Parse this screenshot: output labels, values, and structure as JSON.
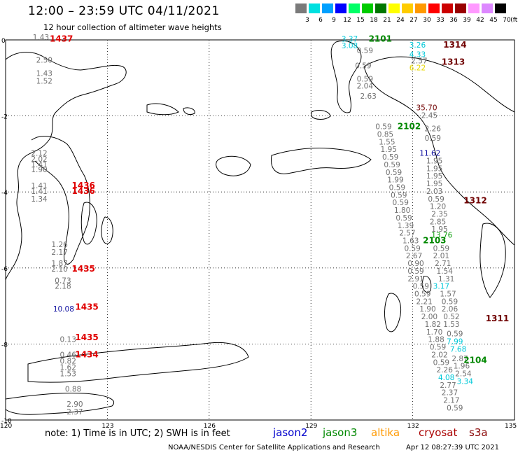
{
  "header": {
    "title": "12:00 – 23:59 UTC 04/11/2021",
    "subtitle": "12 hour collection of altimeter wave heights"
  },
  "legend": {
    "unit": "(ft)",
    "bins": [
      {
        "label": "3",
        "color": "#7a7a7a"
      },
      {
        "label": "6",
        "color": "#00e0e0"
      },
      {
        "label": "9",
        "color": "#00a0ff"
      },
      {
        "label": "12",
        "color": "#0000ff"
      },
      {
        "label": "15",
        "color": "#00ff66"
      },
      {
        "label": "18",
        "color": "#00cc00"
      },
      {
        "label": "21",
        "color": "#007700"
      },
      {
        "label": "24",
        "color": "#ffff00"
      },
      {
        "label": "27",
        "color": "#ffcc00"
      },
      {
        "label": "30",
        "color": "#ff9900"
      },
      {
        "label": "33",
        "color": "#ff0000"
      },
      {
        "label": "36",
        "color": "#cc0000"
      },
      {
        "label": "39",
        "color": "#990000"
      },
      {
        "label": "42",
        "color": "#ff99ff"
      },
      {
        "label": "45",
        "color": "#dd88ff"
      },
      {
        "label": "70",
        "color": "#000000"
      }
    ]
  },
  "axes": {
    "lat_labels": [
      "0",
      "-2",
      "-4",
      "-6",
      "-8",
      "-10"
    ],
    "lon_labels": [
      "120",
      "123",
      "126",
      "129",
      "132",
      "135"
    ]
  },
  "note": "note: 1) Time is in UTC; 2) SWH is in feet",
  "satellites": [
    {
      "name": "jason2",
      "color": "#0000cc"
    },
    {
      "name": "jason3",
      "color": "#008800"
    },
    {
      "name": "altika",
      "color": "#ff9900"
    },
    {
      "name": "cryosat",
      "color": "#aa0000"
    },
    {
      "name": "s3a",
      "color": "#880000"
    }
  ],
  "footer": {
    "credit": "NOAA/NESDIS Center for Satellite Applications and Research",
    "timestamp": "Apr 12 08:27:39 UTC 2021"
  },
  "colors": {
    "swh_gray": "#707070",
    "swh_cyan": "#00c8d8",
    "swh_blue": "#1010a0",
    "swh_yellow": "#e8d800",
    "swh_green": "#10a010",
    "time_red": "#e00000",
    "time_green": "#008800",
    "time_darkred": "#700000"
  },
  "chart_data": {
    "type": "scatter",
    "xlim": [
      120,
      135
    ],
    "ylim": [
      -10,
      0
    ],
    "grid": true,
    "pass_times": [
      {
        "text": "1437",
        "lon": 121.3,
        "lat": -0.05,
        "sat": "cryosat"
      },
      {
        "text": "1436",
        "lon": 121.95,
        "lat": -3.9,
        "sat": "cryosat"
      },
      {
        "text": "1436",
        "lon": 121.95,
        "lat": -4.05,
        "sat": "cryosat"
      },
      {
        "text": "1435",
        "lon": 121.95,
        "lat": -6.1,
        "sat": "cryosat"
      },
      {
        "text": "1435",
        "lon": 122.05,
        "lat": -7.1,
        "sat": "cryosat"
      },
      {
        "text": "1435",
        "lon": 122.05,
        "lat": -7.9,
        "sat": "cryosat"
      },
      {
        "text": "1434",
        "lon": 122.05,
        "lat": -8.35,
        "sat": "cryosat"
      },
      {
        "text": "2101",
        "lon": 130.7,
        "lat": -0.05,
        "sat": "jason3"
      },
      {
        "text": "1314",
        "lon": 132.9,
        "lat": -0.2,
        "sat": "s3a"
      },
      {
        "text": "1313",
        "lon": 132.85,
        "lat": -0.65,
        "sat": "s3a"
      },
      {
        "text": "2102",
        "lon": 131.55,
        "lat": -2.35,
        "sat": "jason3"
      },
      {
        "text": "1312",
        "lon": 133.5,
        "lat": -4.3,
        "sat": "s3a"
      },
      {
        "text": "2103",
        "lon": 132.3,
        "lat": -5.35,
        "sat": "jason3"
      },
      {
        "text": "1311",
        "lon": 134.15,
        "lat": -7.4,
        "sat": "s3a"
      },
      {
        "text": "2104",
        "lon": 133.5,
        "lat": -8.5,
        "sat": "jason3"
      }
    ],
    "swh_points": [
      {
        "text": "1.43",
        "lon": 120.8,
        "lat": 0.0,
        "c": "gray"
      },
      {
        "text": "2.50",
        "lon": 120.9,
        "lat": -0.6,
        "c": "gray"
      },
      {
        "text": "1.43",
        "lon": 120.9,
        "lat": -0.95,
        "c": "gray"
      },
      {
        "text": "1.52",
        "lon": 120.9,
        "lat": -1.15,
        "c": "gray"
      },
      {
        "text": "2.12",
        "lon": 120.75,
        "lat": -3.05,
        "c": "gray"
      },
      {
        "text": "2.02",
        "lon": 120.75,
        "lat": -3.2,
        "c": "gray"
      },
      {
        "text": "1.41",
        "lon": 120.75,
        "lat": -3.35,
        "c": "gray"
      },
      {
        "text": "1.90",
        "lon": 120.75,
        "lat": -3.48,
        "c": "gray"
      },
      {
        "text": "1.41",
        "lon": 120.75,
        "lat": -3.9,
        "c": "gray"
      },
      {
        "text": "1.41",
        "lon": 120.75,
        "lat": -4.05,
        "c": "gray"
      },
      {
        "text": "1.34",
        "lon": 120.75,
        "lat": -4.25,
        "c": "gray"
      },
      {
        "text": "1.26",
        "lon": 121.35,
        "lat": -5.45,
        "c": "gray"
      },
      {
        "text": "2.17",
        "lon": 121.35,
        "lat": -5.65,
        "c": "gray"
      },
      {
        "text": "1.87",
        "lon": 121.35,
        "lat": -5.95,
        "c": "gray"
      },
      {
        "text": "2.10",
        "lon": 121.35,
        "lat": -6.1,
        "c": "gray"
      },
      {
        "text": "0.73",
        "lon": 121.45,
        "lat": -6.4,
        "c": "gray"
      },
      {
        "text": "2.18",
        "lon": 121.45,
        "lat": -6.55,
        "c": "gray"
      },
      {
        "text": "10.08",
        "lon": 121.4,
        "lat": -7.15,
        "c": "blue"
      },
      {
        "text": "0.13",
        "lon": 121.6,
        "lat": -7.95,
        "c": "gray"
      },
      {
        "text": "0.46",
        "lon": 121.6,
        "lat": -8.35,
        "c": "gray"
      },
      {
        "text": "0.82",
        "lon": 121.6,
        "lat": -8.52,
        "c": "gray"
      },
      {
        "text": "1.62",
        "lon": 121.6,
        "lat": -8.68,
        "c": "gray"
      },
      {
        "text": "1.53",
        "lon": 121.6,
        "lat": -8.85,
        "c": "gray"
      },
      {
        "text": "0.88",
        "lon": 121.75,
        "lat": -9.25,
        "c": "gray"
      },
      {
        "text": "2.90",
        "lon": 121.8,
        "lat": -9.65,
        "c": "gray"
      },
      {
        "text": "2.37",
        "lon": 121.8,
        "lat": -9.85,
        "c": "gray"
      },
      {
        "text": "3.37",
        "lon": 129.9,
        "lat": -0.05,
        "c": "cyan"
      },
      {
        "text": "3.08",
        "lon": 129.9,
        "lat": -0.22,
        "c": "cyan"
      },
      {
        "text": "0.59",
        "lon": 130.35,
        "lat": -0.35,
        "c": "gray"
      },
      {
        "text": "0.59",
        "lon": 130.3,
        "lat": -0.75,
        "c": "gray"
      },
      {
        "text": "0.59",
        "lon": 130.35,
        "lat": -1.1,
        "c": "gray"
      },
      {
        "text": "2.04",
        "lon": 130.35,
        "lat": -1.28,
        "c": "gray"
      },
      {
        "text": "2.63",
        "lon": 130.45,
        "lat": -1.55,
        "c": "gray"
      },
      {
        "text": "3.26",
        "lon": 131.9,
        "lat": -0.2,
        "c": "cyan"
      },
      {
        "text": "4.33",
        "lon": 131.9,
        "lat": -0.45,
        "c": "cyan"
      },
      {
        "text": "2.57",
        "lon": 131.95,
        "lat": -0.62,
        "c": "gray"
      },
      {
        "text": "6.22",
        "lon": 131.9,
        "lat": -0.8,
        "c": "yellow"
      },
      {
        "text": "35.70",
        "lon": 132.1,
        "lat": -1.85,
        "c": "darkred"
      },
      {
        "text": "2.45",
        "lon": 132.25,
        "lat": -2.05,
        "c": "gray"
      },
      {
        "text": "2.26",
        "lon": 132.35,
        "lat": -2.4,
        "c": "gray"
      },
      {
        "text": "0.59",
        "lon": 132.35,
        "lat": -2.65,
        "c": "gray"
      },
      {
        "text": "11.62",
        "lon": 132.2,
        "lat": -3.05,
        "c": "blue"
      },
      {
        "text": "1.95",
        "lon": 132.4,
        "lat": -3.25,
        "c": "gray"
      },
      {
        "text": "1.95",
        "lon": 132.4,
        "lat": -3.45,
        "c": "gray"
      },
      {
        "text": "1.95",
        "lon": 132.4,
        "lat": -3.65,
        "c": "gray"
      },
      {
        "text": "1.95",
        "lon": 132.4,
        "lat": -3.85,
        "c": "gray"
      },
      {
        "text": "2.03",
        "lon": 132.4,
        "lat": -4.05,
        "c": "gray"
      },
      {
        "text": "0.59",
        "lon": 132.45,
        "lat": -4.25,
        "c": "gray"
      },
      {
        "text": "1.20",
        "lon": 132.5,
        "lat": -4.45,
        "c": "gray"
      },
      {
        "text": "2.35",
        "lon": 132.55,
        "lat": -4.65,
        "c": "gray"
      },
      {
        "text": "2.85",
        "lon": 132.5,
        "lat": -4.85,
        "c": "gray"
      },
      {
        "text": "1.95",
        "lon": 132.55,
        "lat": -5.05,
        "c": "gray"
      },
      {
        "text": "13.76",
        "lon": 132.55,
        "lat": -5.2,
        "c": "green"
      },
      {
        "text": "0.59",
        "lon": 132.6,
        "lat": -5.55,
        "c": "gray"
      },
      {
        "text": "2.01",
        "lon": 132.6,
        "lat": -5.75,
        "c": "gray"
      },
      {
        "text": "2.71",
        "lon": 132.65,
        "lat": -5.95,
        "c": "gray"
      },
      {
        "text": "1.54",
        "lon": 132.7,
        "lat": -6.15,
        "c": "gray"
      },
      {
        "text": "1.31",
        "lon": 132.75,
        "lat": -6.35,
        "c": "gray"
      },
      {
        "text": "3.17",
        "lon": 132.6,
        "lat": -6.55,
        "c": "cyan"
      },
      {
        "text": "1.57",
        "lon": 132.8,
        "lat": -6.75,
        "c": "gray"
      },
      {
        "text": "0.59",
        "lon": 132.85,
        "lat": -6.95,
        "c": "gray"
      },
      {
        "text": "2.06",
        "lon": 132.85,
        "lat": -7.15,
        "c": "gray"
      },
      {
        "text": "0.52",
        "lon": 132.9,
        "lat": -7.35,
        "c": "gray"
      },
      {
        "text": "1.53",
        "lon": 132.9,
        "lat": -7.55,
        "c": "gray"
      },
      {
        "text": "0.59",
        "lon": 133.0,
        "lat": -7.8,
        "c": "gray"
      },
      {
        "text": "7.99",
        "lon": 133.0,
        "lat": -8.0,
        "c": "cyan"
      },
      {
        "text": "7.68",
        "lon": 133.1,
        "lat": -8.2,
        "c": "cyan"
      },
      {
        "text": "2.87",
        "lon": 133.15,
        "lat": -8.45,
        "c": "gray"
      },
      {
        "text": "1.96",
        "lon": 133.2,
        "lat": -8.65,
        "c": "gray"
      },
      {
        "text": "2.54",
        "lon": 133.25,
        "lat": -8.85,
        "c": "gray"
      },
      {
        "text": "3.34",
        "lon": 133.3,
        "lat": -9.05,
        "c": "cyan"
      },
      {
        "text": "0.59",
        "lon": 130.9,
        "lat": -2.35,
        "c": "gray"
      },
      {
        "text": "0.85",
        "lon": 130.95,
        "lat": -2.55,
        "c": "gray"
      },
      {
        "text": "1.55",
        "lon": 131.0,
        "lat": -2.75,
        "c": "gray"
      },
      {
        "text": "1.95",
        "lon": 131.05,
        "lat": -2.95,
        "c": "gray"
      },
      {
        "text": "0.59",
        "lon": 131.1,
        "lat": -3.15,
        "c": "gray"
      },
      {
        "text": "0.59",
        "lon": 131.15,
        "lat": -3.35,
        "c": "gray"
      },
      {
        "text": "0.59",
        "lon": 131.2,
        "lat": -3.55,
        "c": "gray"
      },
      {
        "text": "1.99",
        "lon": 131.25,
        "lat": -3.75,
        "c": "gray"
      },
      {
        "text": "0.59",
        "lon": 131.3,
        "lat": -3.95,
        "c": "gray"
      },
      {
        "text": "0.59",
        "lon": 131.35,
        "lat": -4.15,
        "c": "gray"
      },
      {
        "text": "0.59",
        "lon": 131.4,
        "lat": -4.35,
        "c": "gray"
      },
      {
        "text": "1.80",
        "lon": 131.45,
        "lat": -4.55,
        "c": "gray"
      },
      {
        "text": "0.59",
        "lon": 131.5,
        "lat": -4.75,
        "c": "gray"
      },
      {
        "text": "1.39",
        "lon": 131.55,
        "lat": -4.95,
        "c": "gray"
      },
      {
        "text": "2.57",
        "lon": 131.6,
        "lat": -5.15,
        "c": "gray"
      },
      {
        "text": "1.63",
        "lon": 131.7,
        "lat": -5.35,
        "c": "gray"
      },
      {
        "text": "0.59",
        "lon": 131.75,
        "lat": -5.55,
        "c": "gray"
      },
      {
        "text": "2.67",
        "lon": 131.8,
        "lat": -5.75,
        "c": "gray"
      },
      {
        "text": "0.90",
        "lon": 131.85,
        "lat": -5.95,
        "c": "gray"
      },
      {
        "text": "0.59",
        "lon": 131.85,
        "lat": -6.15,
        "c": "gray"
      },
      {
        "text": "2.91",
        "lon": 131.85,
        "lat": -6.35,
        "c": "gray"
      },
      {
        "text": "0.59",
        "lon": 132.0,
        "lat": -6.55,
        "c": "gray"
      },
      {
        "text": "0.59",
        "lon": 132.05,
        "lat": -6.75,
        "c": "gray"
      },
      {
        "text": "2.21",
        "lon": 132.1,
        "lat": -6.95,
        "c": "gray"
      },
      {
        "text": "1.90",
        "lon": 132.2,
        "lat": -7.15,
        "c": "gray"
      },
      {
        "text": "2.00",
        "lon": 132.25,
        "lat": -7.35,
        "c": "gray"
      },
      {
        "text": "1.82",
        "lon": 132.35,
        "lat": -7.55,
        "c": "gray"
      },
      {
        "text": "1.70",
        "lon": 132.4,
        "lat": -7.75,
        "c": "gray"
      },
      {
        "text": "1.88",
        "lon": 132.45,
        "lat": -7.95,
        "c": "gray"
      },
      {
        "text": "0.59",
        "lon": 132.5,
        "lat": -8.15,
        "c": "gray"
      },
      {
        "text": "2.02",
        "lon": 132.55,
        "lat": -8.35,
        "c": "gray"
      },
      {
        "text": "0.59",
        "lon": 132.6,
        "lat": -8.55,
        "c": "gray"
      },
      {
        "text": "2.26",
        "lon": 132.7,
        "lat": -8.75,
        "c": "gray"
      },
      {
        "text": "4.08",
        "lon": 132.75,
        "lat": -8.95,
        "c": "cyan"
      },
      {
        "text": "2.77",
        "lon": 132.8,
        "lat": -9.15,
        "c": "gray"
      },
      {
        "text": "2.37",
        "lon": 132.85,
        "lat": -9.35,
        "c": "gray"
      },
      {
        "text": "2.17",
        "lon": 132.9,
        "lat": -9.55,
        "c": "gray"
      },
      {
        "text": "0.59",
        "lon": 133.0,
        "lat": -9.75,
        "c": "gray"
      }
    ]
  }
}
